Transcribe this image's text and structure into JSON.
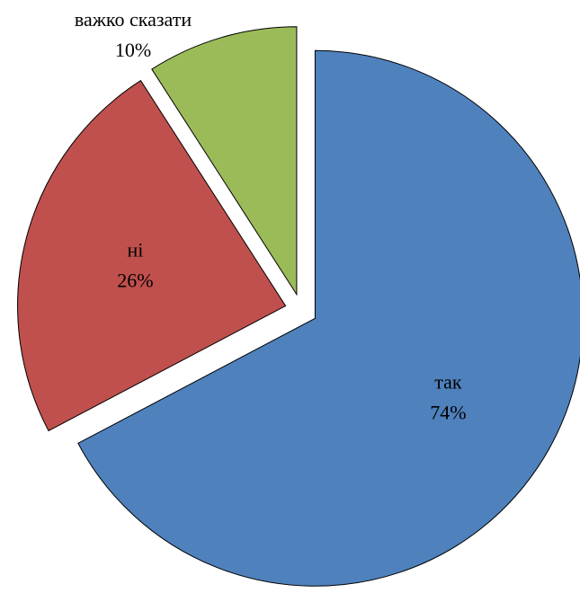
{
  "chart_data": {
    "type": "pie",
    "categories": [
      "так",
      "ні",
      "важко сказати"
    ],
    "values": [
      74,
      26,
      10
    ],
    "value_labels": [
      "74%",
      "26%",
      "10%"
    ],
    "colors": [
      "#4f81bd",
      "#c0504d",
      "#9bbb59"
    ],
    "exploded": true
  }
}
